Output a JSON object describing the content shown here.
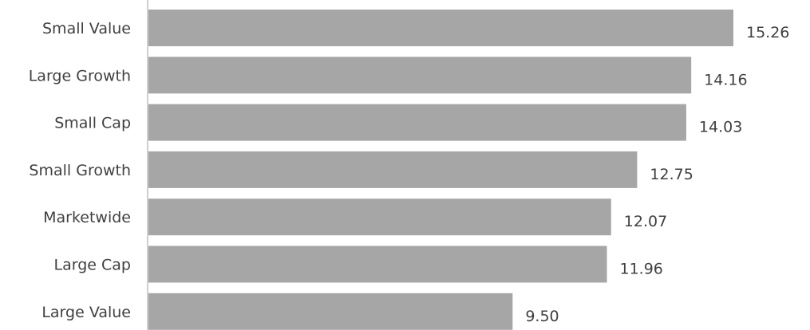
{
  "chart_data": {
    "type": "bar",
    "orientation": "horizontal",
    "categories": [
      "Small Value",
      "Large Growth",
      "Small Cap",
      "Small Growth",
      "Marketwide",
      "Large Cap",
      "Large Value"
    ],
    "values": [
      15.26,
      14.16,
      14.03,
      12.75,
      12.07,
      11.96,
      9.5
    ],
    "value_labels": [
      "15.26",
      "14.16",
      "14.03",
      "12.75",
      "12.07",
      "11.96",
      "9.50"
    ],
    "title": "",
    "xlabel": "",
    "ylabel": "",
    "xlim": [
      0,
      15.26
    ],
    "grid": false,
    "legend": "none",
    "colors": {
      "bar": "#a6a6a6",
      "axis": "#bfbfbf",
      "text": "#404040"
    }
  }
}
